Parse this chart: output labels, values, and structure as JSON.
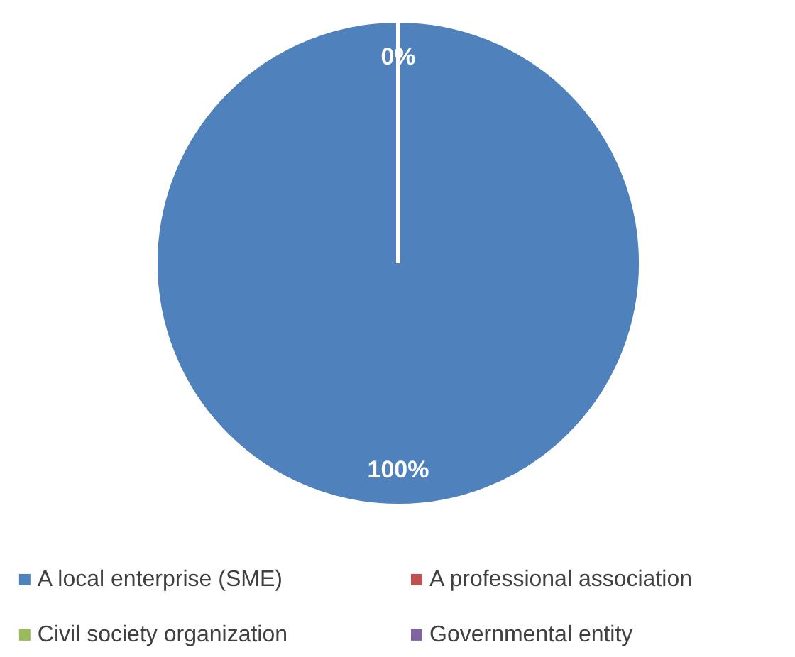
{
  "chart_data": {
    "type": "pie",
    "categories": [
      "A local enterprise (SME)",
      "A professional association",
      "Civil society organization",
      "Governmental entity"
    ],
    "values": [
      100,
      0,
      0,
      0
    ],
    "colors": [
      "#4f81bd",
      "#c0504d",
      "#9bbb59",
      "#8064a2"
    ],
    "value_labels": [
      "100%",
      "0%",
      null,
      null
    ],
    "legend": "bottom"
  }
}
